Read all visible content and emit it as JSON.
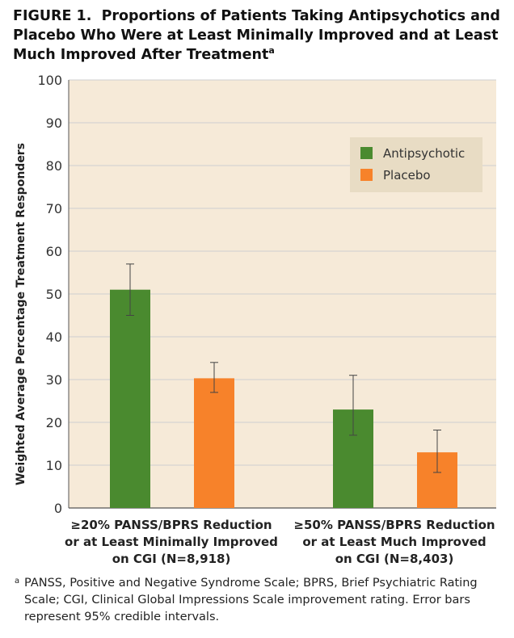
{
  "figure": {
    "label": "FIGURE 1.",
    "title": "Proportions of Patients Taking Antipsychotics and Placebo Who Were at Least Minimally Improved and at Least Much Improved After Treatment",
    "title_sup": "a"
  },
  "colors": {
    "plot_bg": "#f6ead8",
    "grid": "#cfcfcf",
    "antipsychotic": "#4a8a2f",
    "placebo": "#f7822a",
    "legend_bg": "#e8dcc4"
  },
  "chart_data": {
    "type": "bar",
    "ylabel": "Weighted Average Percentage Treatment Responders",
    "ylim": [
      0,
      100
    ],
    "yticks": [
      0,
      10,
      20,
      30,
      40,
      50,
      60,
      70,
      80,
      90,
      100
    ],
    "grid": true,
    "legend_position": "top-right",
    "categories": [
      [
        "≥20% PANSS/BPRS Reduction",
        "or at Least Minimally Improved",
        "on CGI (N=8,918)"
      ],
      [
        "≥50% PANSS/BPRS Reduction",
        "or at Least Much Improved",
        "on CGI (N=8,403)"
      ]
    ],
    "series": [
      {
        "name": "Antipsychotic",
        "values": [
          51,
          23
        ],
        "err_low": [
          45,
          17
        ],
        "err_high": [
          57,
          31
        ]
      },
      {
        "name": "Placebo",
        "values": [
          30.3,
          13
        ],
        "err_low": [
          27,
          8.3
        ],
        "err_high": [
          34,
          18.2
        ]
      }
    ],
    "error_bars": "95% credible intervals"
  },
  "footnote": {
    "marker": "a",
    "text": "PANSS, Positive and Negative Syndrome Scale; BPRS, Brief Psychiatric Rating Scale; CGI, Clinical Global Impressions Scale improvement rating. Error bars represent 95% credible intervals."
  }
}
